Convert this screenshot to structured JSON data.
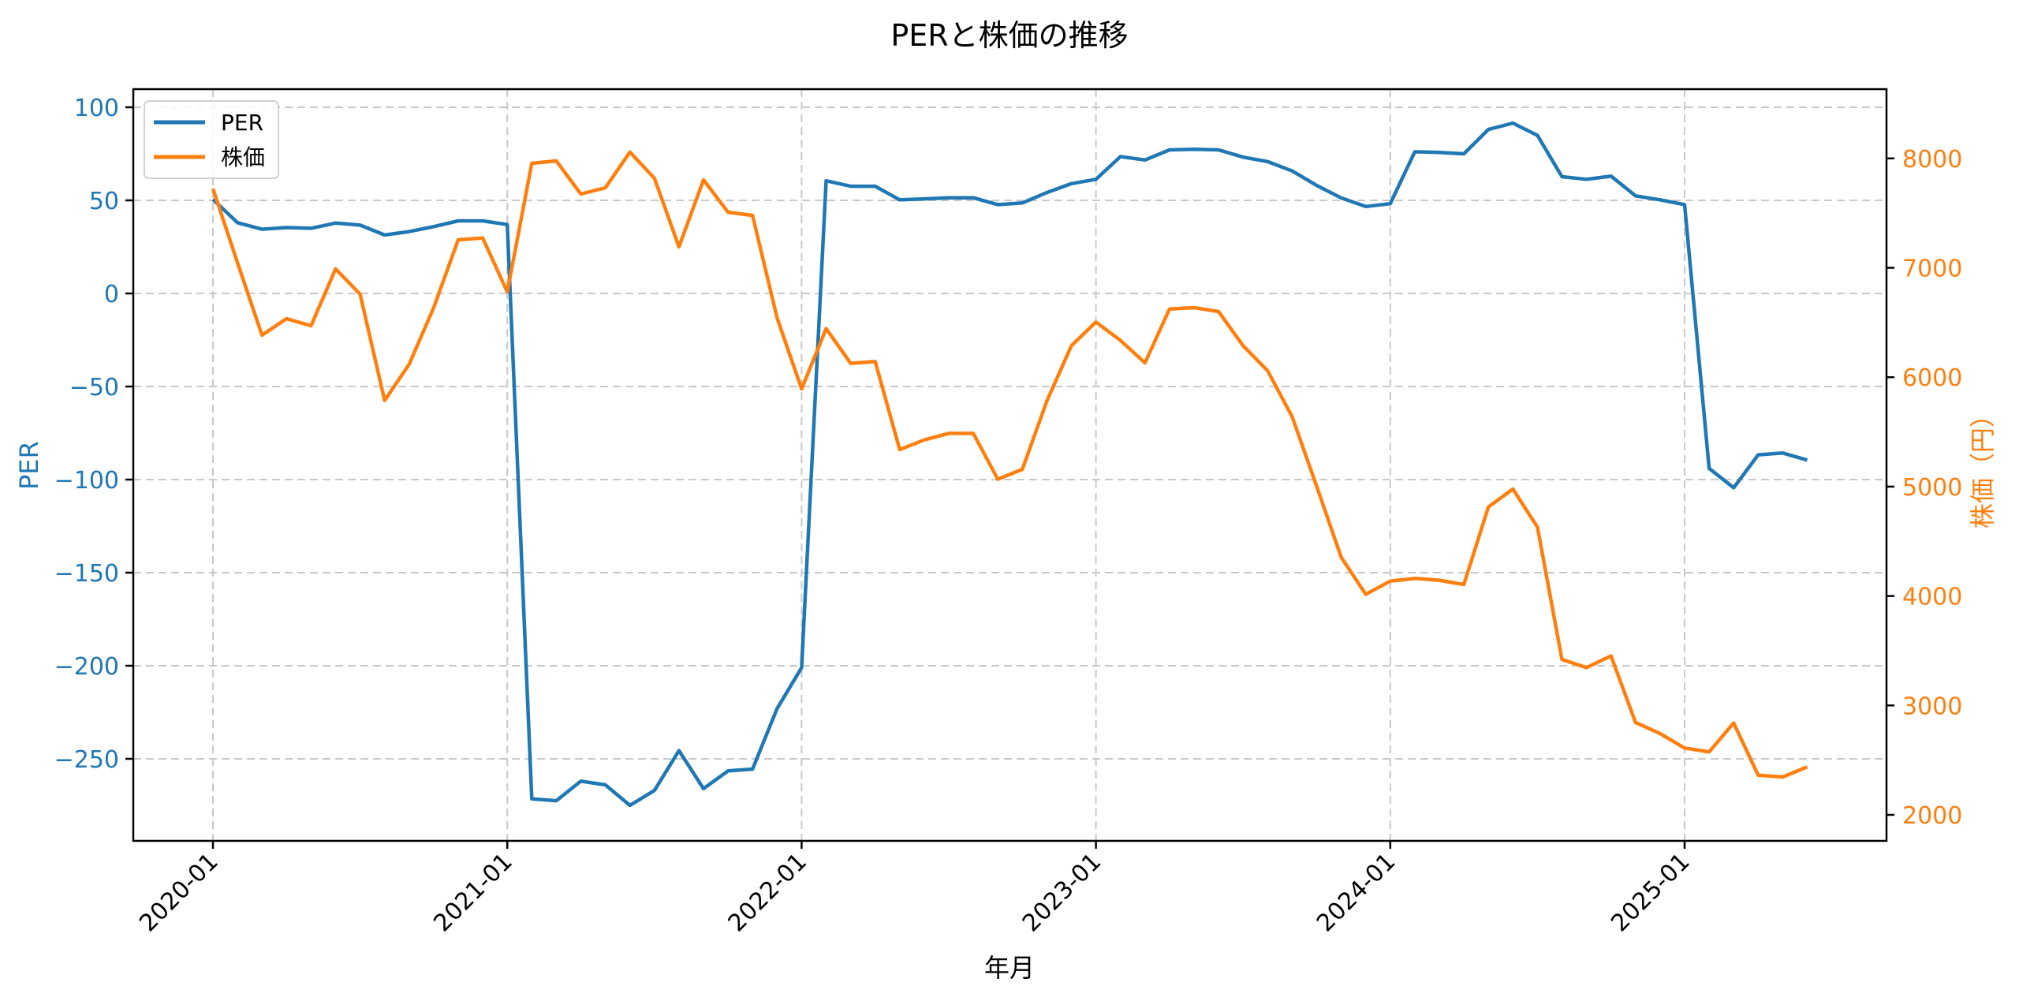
{
  "chart_data": {
    "type": "line",
    "title": "PERと株価の推移",
    "xlabel": "年月",
    "ylabel": "PER",
    "ylabel_right": "株価（円）",
    "x_ticks": [
      "2020-01",
      "2021-01",
      "2022-01",
      "2023-01",
      "2024-01",
      "2025-01"
    ],
    "y_ticks_left": [
      100,
      50,
      0,
      -50,
      -100,
      -150,
      -200,
      -250
    ],
    "y_ticks_right": [
      8000,
      7000,
      6000,
      5000,
      4000,
      3000,
      2000
    ],
    "ylim": [
      -294,
      110
    ],
    "ylim_right": [
      1762,
      8633
    ],
    "grid": true,
    "grid_style": "dashed",
    "legend_position": "upper left",
    "x": [
      "2020-01",
      "2020-02",
      "2020-03",
      "2020-04",
      "2020-05",
      "2020-06",
      "2020-07",
      "2020-08",
      "2020-09",
      "2020-10",
      "2020-11",
      "2020-12",
      "2021-01",
      "2021-02",
      "2021-03",
      "2021-04",
      "2021-05",
      "2021-06",
      "2021-07",
      "2021-08",
      "2021-09",
      "2021-10",
      "2021-11",
      "2021-12",
      "2022-01",
      "2022-02",
      "2022-03",
      "2022-04",
      "2022-05",
      "2022-06",
      "2022-07",
      "2022-08",
      "2022-09",
      "2022-10",
      "2022-11",
      "2022-12",
      "2023-01",
      "2023-02",
      "2023-03",
      "2023-04",
      "2023-05",
      "2023-06",
      "2023-07",
      "2023-08",
      "2023-09",
      "2023-10",
      "2023-11",
      "2023-12",
      "2024-01",
      "2024-02",
      "2024-03",
      "2024-04",
      "2024-05",
      "2024-06",
      "2024-07",
      "2024-08",
      "2024-09",
      "2024-10",
      "2024-11",
      "2024-12",
      "2025-01",
      "2025-02",
      "2025-03",
      "2025-04",
      "2025-05",
      "2025-06"
    ],
    "series": [
      {
        "name": "PER",
        "axis": "left",
        "color": "#1f77b4",
        "values": [
          50.5,
          38,
          34.5,
          35.4,
          35,
          37.8,
          36.7,
          31.4,
          33.2,
          35.9,
          39,
          39,
          37,
          -271.5,
          -272.5,
          -262,
          -264,
          -275,
          -267,
          -245.6,
          -266,
          -256.5,
          -255.5,
          -223,
          -201,
          60.5,
          57.6,
          57.6,
          50.3,
          50.8,
          51.4,
          51.4,
          47.7,
          48.6,
          54.2,
          59,
          61.3,
          73.5,
          71.7,
          77.1,
          77.4,
          77.1,
          73.2,
          70.8,
          65.8,
          58,
          51.3,
          46.7,
          48.2,
          76.1,
          75.7,
          75,
          88.1,
          91.5,
          84.9,
          62.7,
          61.3,
          63,
          52.4,
          50.3,
          47.7,
          -94,
          -104.4,
          -86.7,
          -85.7,
          -89.5
        ]
      },
      {
        "name": "株価",
        "axis": "right",
        "color": "#ff7f0e",
        "values": [
          7723,
          7047,
          6384,
          6535,
          6470,
          6990,
          6759,
          5787,
          6119,
          6636,
          7256,
          7272,
          6780,
          7955,
          7977,
          7674,
          7732,
          8058,
          7818,
          7191,
          7804,
          7508,
          7479,
          6542,
          5893,
          6444,
          6127,
          6143,
          5338,
          5427,
          5487,
          5487,
          5068,
          5158,
          5783,
          6288,
          6504,
          6336,
          6131,
          6624,
          6636,
          6600,
          6288,
          6059,
          5639,
          5002,
          4354,
          4016,
          4136,
          4161,
          4144,
          4105,
          4814,
          4978,
          4630,
          3420,
          3345,
          3453,
          2844,
          2743,
          2611,
          2575,
          2839,
          2363,
          2346,
          2438
        ]
      }
    ]
  },
  "legend": {
    "items": [
      {
        "label": "PER",
        "color": "#1f77b4"
      },
      {
        "label": "株価",
        "color": "#ff7f0e"
      }
    ]
  },
  "colors": {
    "per": "#1f77b4",
    "price": "#ff7f0e",
    "grid": "#c8c8c8",
    "axis": "#000000"
  }
}
